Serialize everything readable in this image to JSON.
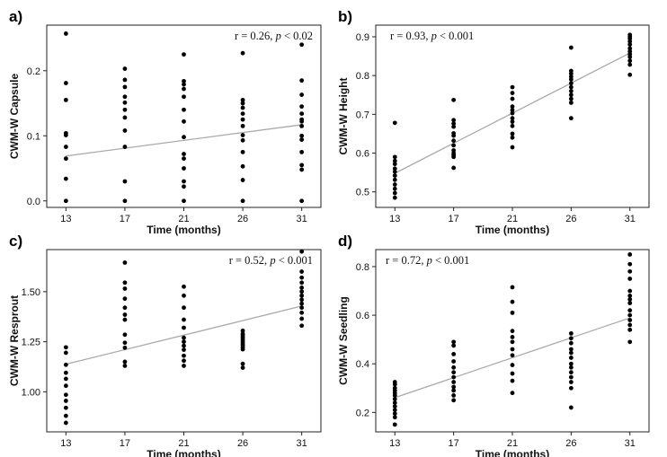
{
  "chart_data": [
    {
      "panel": "a)",
      "type": "scatter",
      "xlabel": "Time (months)",
      "ylabel": "CWM-W Capsule",
      "x_categories": [
        13,
        17,
        21,
        26,
        31
      ],
      "ylim": [
        -0.01,
        0.27
      ],
      "yticks": [
        0.0,
        0.1,
        0.2
      ],
      "ytick_labels": [
        "0.0",
        "0.1",
        "0.2"
      ],
      "annotation": {
        "r_text": "r = 0.26, ",
        "p_var": "p",
        "p_text": " < 0.02"
      },
      "trend": {
        "start": 0.069,
        "end": 0.117
      },
      "points": [
        {
          "x": 13,
          "y": 0.257
        },
        {
          "x": 13,
          "y": 0.181
        },
        {
          "x": 13,
          "y": 0.155
        },
        {
          "x": 13,
          "y": 0.104
        },
        {
          "x": 13,
          "y": 0.101
        },
        {
          "x": 13,
          "y": 0.083
        },
        {
          "x": 13,
          "y": 0.065
        },
        {
          "x": 13,
          "y": 0.034
        },
        {
          "x": 13,
          "y": 0.0
        },
        {
          "x": 17,
          "y": 0.203
        },
        {
          "x": 17,
          "y": 0.186
        },
        {
          "x": 17,
          "y": 0.175
        },
        {
          "x": 17,
          "y": 0.16
        },
        {
          "x": 17,
          "y": 0.151
        },
        {
          "x": 17,
          "y": 0.14
        },
        {
          "x": 17,
          "y": 0.128
        },
        {
          "x": 17,
          "y": 0.108
        },
        {
          "x": 17,
          "y": 0.083
        },
        {
          "x": 17,
          "y": 0.03
        },
        {
          "x": 17,
          "y": 0.0
        },
        {
          "x": 21,
          "y": 0.225
        },
        {
          "x": 21,
          "y": 0.184
        },
        {
          "x": 21,
          "y": 0.179
        },
        {
          "x": 21,
          "y": 0.172
        },
        {
          "x": 21,
          "y": 0.16
        },
        {
          "x": 21,
          "y": 0.14
        },
        {
          "x": 21,
          "y": 0.122
        },
        {
          "x": 21,
          "y": 0.098
        },
        {
          "x": 21,
          "y": 0.072
        },
        {
          "x": 21,
          "y": 0.065
        },
        {
          "x": 21,
          "y": 0.05
        },
        {
          "x": 21,
          "y": 0.03
        },
        {
          "x": 21,
          "y": 0.022
        },
        {
          "x": 21,
          "y": 0.0
        },
        {
          "x": 26,
          "y": 0.227
        },
        {
          "x": 26,
          "y": 0.155
        },
        {
          "x": 26,
          "y": 0.15
        },
        {
          "x": 26,
          "y": 0.143
        },
        {
          "x": 26,
          "y": 0.134
        },
        {
          "x": 26,
          "y": 0.125
        },
        {
          "x": 26,
          "y": 0.115
        },
        {
          "x": 26,
          "y": 0.101
        },
        {
          "x": 26,
          "y": 0.093
        },
        {
          "x": 26,
          "y": 0.075
        },
        {
          "x": 26,
          "y": 0.053
        },
        {
          "x": 26,
          "y": 0.032
        },
        {
          "x": 26,
          "y": 0.0
        },
        {
          "x": 31,
          "y": 0.24
        },
        {
          "x": 31,
          "y": 0.185
        },
        {
          "x": 31,
          "y": 0.163
        },
        {
          "x": 31,
          "y": 0.145
        },
        {
          "x": 31,
          "y": 0.134
        },
        {
          "x": 31,
          "y": 0.125
        },
        {
          "x": 31,
          "y": 0.122
        },
        {
          "x": 31,
          "y": 0.115
        },
        {
          "x": 31,
          "y": 0.1
        },
        {
          "x": 31,
          "y": 0.094
        },
        {
          "x": 31,
          "y": 0.075
        },
        {
          "x": 31,
          "y": 0.055
        },
        {
          "x": 31,
          "y": 0.048
        },
        {
          "x": 31,
          "y": 0.0
        }
      ]
    },
    {
      "panel": "b)",
      "type": "scatter",
      "xlabel": "Time (months)",
      "ylabel": "CWM-W Height",
      "x_categories": [
        13,
        17,
        21,
        26,
        31
      ],
      "ylim": [
        0.46,
        0.93
      ],
      "yticks": [
        0.5,
        0.6,
        0.7,
        0.8,
        0.9
      ],
      "ytick_labels": [
        "0.5",
        "0.6",
        "0.7",
        "0.8",
        "0.9"
      ],
      "annotation": {
        "r_text": "r = 0.93, ",
        "p_var": "p",
        "p_text": " < 0.001"
      },
      "trend": {
        "start": 0.548,
        "end": 0.858
      },
      "points": [
        {
          "x": 13,
          "y": 0.678
        },
        {
          "x": 13,
          "y": 0.59
        },
        {
          "x": 13,
          "y": 0.58
        },
        {
          "x": 13,
          "y": 0.572
        },
        {
          "x": 13,
          "y": 0.56
        },
        {
          "x": 13,
          "y": 0.552
        },
        {
          "x": 13,
          "y": 0.542
        },
        {
          "x": 13,
          "y": 0.531
        },
        {
          "x": 13,
          "y": 0.519
        },
        {
          "x": 13,
          "y": 0.508
        },
        {
          "x": 13,
          "y": 0.497
        },
        {
          "x": 13,
          "y": 0.485
        },
        {
          "x": 17,
          "y": 0.737
        },
        {
          "x": 17,
          "y": 0.685
        },
        {
          "x": 17,
          "y": 0.676
        },
        {
          "x": 17,
          "y": 0.668
        },
        {
          "x": 17,
          "y": 0.651
        },
        {
          "x": 17,
          "y": 0.645
        },
        {
          "x": 17,
          "y": 0.632
        },
        {
          "x": 17,
          "y": 0.62
        },
        {
          "x": 17,
          "y": 0.607
        },
        {
          "x": 17,
          "y": 0.6
        },
        {
          "x": 17,
          "y": 0.595
        },
        {
          "x": 17,
          "y": 0.59
        },
        {
          "x": 17,
          "y": 0.562
        },
        {
          "x": 21,
          "y": 0.77
        },
        {
          "x": 21,
          "y": 0.755
        },
        {
          "x": 21,
          "y": 0.74
        },
        {
          "x": 21,
          "y": 0.72
        },
        {
          "x": 21,
          "y": 0.711
        },
        {
          "x": 21,
          "y": 0.703
        },
        {
          "x": 21,
          "y": 0.69
        },
        {
          "x": 21,
          "y": 0.681
        },
        {
          "x": 21,
          "y": 0.67
        },
        {
          "x": 21,
          "y": 0.65
        },
        {
          "x": 21,
          "y": 0.64
        },
        {
          "x": 21,
          "y": 0.615
        },
        {
          "x": 26,
          "y": 0.872
        },
        {
          "x": 26,
          "y": 0.812
        },
        {
          "x": 26,
          "y": 0.805
        },
        {
          "x": 26,
          "y": 0.797
        },
        {
          "x": 26,
          "y": 0.79
        },
        {
          "x": 26,
          "y": 0.78
        },
        {
          "x": 26,
          "y": 0.77
        },
        {
          "x": 26,
          "y": 0.76
        },
        {
          "x": 26,
          "y": 0.75
        },
        {
          "x": 26,
          "y": 0.74
        },
        {
          "x": 26,
          "y": 0.73
        },
        {
          "x": 26,
          "y": 0.69
        },
        {
          "x": 31,
          "y": 0.905
        },
        {
          "x": 31,
          "y": 0.9
        },
        {
          "x": 31,
          "y": 0.895
        },
        {
          "x": 31,
          "y": 0.888
        },
        {
          "x": 31,
          "y": 0.88
        },
        {
          "x": 31,
          "y": 0.87
        },
        {
          "x": 31,
          "y": 0.862
        },
        {
          "x": 31,
          "y": 0.855
        },
        {
          "x": 31,
          "y": 0.848
        },
        {
          "x": 31,
          "y": 0.838
        },
        {
          "x": 31,
          "y": 0.828
        },
        {
          "x": 31,
          "y": 0.802
        }
      ]
    },
    {
      "panel": "c)",
      "type": "scatter",
      "xlabel": "Time (months)",
      "ylabel": "CWM-W Resprout",
      "x_categories": [
        13,
        17,
        21,
        26,
        31
      ],
      "ylim": [
        0.8,
        1.71
      ],
      "yticks": [
        1.0,
        1.25,
        1.5
      ],
      "ytick_labels": [
        "1.00",
        "1.25",
        "1.50"
      ],
      "annotation": {
        "r_text": "r = 0.52, ",
        "p_var": "p",
        "p_text": " < 0.001"
      },
      "trend": {
        "start": 1.138,
        "end": 1.428
      },
      "points": [
        {
          "x": 13,
          "y": 1.222
        },
        {
          "x": 13,
          "y": 1.195
        },
        {
          "x": 13,
          "y": 1.135
        },
        {
          "x": 13,
          "y": 1.095
        },
        {
          "x": 13,
          "y": 1.065
        },
        {
          "x": 13,
          "y": 1.03
        },
        {
          "x": 13,
          "y": 0.985
        },
        {
          "x": 13,
          "y": 0.955
        },
        {
          "x": 13,
          "y": 0.92
        },
        {
          "x": 13,
          "y": 0.88
        },
        {
          "x": 13,
          "y": 0.845
        },
        {
          "x": 17,
          "y": 1.645
        },
        {
          "x": 17,
          "y": 1.545
        },
        {
          "x": 17,
          "y": 1.515
        },
        {
          "x": 17,
          "y": 1.465
        },
        {
          "x": 17,
          "y": 1.42
        },
        {
          "x": 17,
          "y": 1.385
        },
        {
          "x": 17,
          "y": 1.36
        },
        {
          "x": 17,
          "y": 1.285
        },
        {
          "x": 17,
          "y": 1.245
        },
        {
          "x": 17,
          "y": 1.22
        },
        {
          "x": 17,
          "y": 1.15
        },
        {
          "x": 17,
          "y": 1.13
        },
        {
          "x": 21,
          "y": 1.525
        },
        {
          "x": 21,
          "y": 1.48
        },
        {
          "x": 21,
          "y": 1.42
        },
        {
          "x": 21,
          "y": 1.36
        },
        {
          "x": 21,
          "y": 1.32
        },
        {
          "x": 21,
          "y": 1.27
        },
        {
          "x": 21,
          "y": 1.25
        },
        {
          "x": 21,
          "y": 1.23
        },
        {
          "x": 21,
          "y": 1.21
        },
        {
          "x": 21,
          "y": 1.18
        },
        {
          "x": 21,
          "y": 1.155
        },
        {
          "x": 21,
          "y": 1.13
        },
        {
          "x": 26,
          "y": 1.305
        },
        {
          "x": 26,
          "y": 1.29
        },
        {
          "x": 26,
          "y": 1.282
        },
        {
          "x": 26,
          "y": 1.272
        },
        {
          "x": 26,
          "y": 1.262
        },
        {
          "x": 26,
          "y": 1.252
        },
        {
          "x": 26,
          "y": 1.242
        },
        {
          "x": 26,
          "y": 1.232
        },
        {
          "x": 26,
          "y": 1.222
        },
        {
          "x": 26,
          "y": 1.212
        },
        {
          "x": 26,
          "y": 1.14
        },
        {
          "x": 26,
          "y": 1.12
        },
        {
          "x": 31,
          "y": 1.7
        },
        {
          "x": 31,
          "y": 1.6
        },
        {
          "x": 31,
          "y": 1.57
        },
        {
          "x": 31,
          "y": 1.545
        },
        {
          "x": 31,
          "y": 1.52
        },
        {
          "x": 31,
          "y": 1.5
        },
        {
          "x": 31,
          "y": 1.48
        },
        {
          "x": 31,
          "y": 1.46
        },
        {
          "x": 31,
          "y": 1.44
        },
        {
          "x": 31,
          "y": 1.42
        },
        {
          "x": 31,
          "y": 1.395
        },
        {
          "x": 31,
          "y": 1.365
        },
        {
          "x": 31,
          "y": 1.33
        }
      ]
    },
    {
      "panel": "d)",
      "type": "scatter",
      "xlabel": "Time (months)",
      "ylabel": "CWM-W Seedling",
      "x_categories": [
        13,
        17,
        21,
        26,
        31
      ],
      "ylim": [
        0.12,
        0.87
      ],
      "yticks": [
        0.2,
        0.4,
        0.6,
        0.8
      ],
      "ytick_labels": [
        "0.2",
        "0.4",
        "0.6",
        "0.8"
      ],
      "annotation": {
        "r_text": "r = 0.72, ",
        "p_var": "p",
        "p_text": " < 0.001"
      },
      "trend": {
        "start": 0.261,
        "end": 0.589
      },
      "points": [
        {
          "x": 13,
          "y": 0.325
        },
        {
          "x": 13,
          "y": 0.315
        },
        {
          "x": 13,
          "y": 0.3
        },
        {
          "x": 13,
          "y": 0.29
        },
        {
          "x": 13,
          "y": 0.28
        },
        {
          "x": 13,
          "y": 0.27
        },
        {
          "x": 13,
          "y": 0.255
        },
        {
          "x": 13,
          "y": 0.24
        },
        {
          "x": 13,
          "y": 0.225
        },
        {
          "x": 13,
          "y": 0.21
        },
        {
          "x": 13,
          "y": 0.195
        },
        {
          "x": 13,
          "y": 0.18
        },
        {
          "x": 13,
          "y": 0.15
        },
        {
          "x": 17,
          "y": 0.49
        },
        {
          "x": 17,
          "y": 0.475
        },
        {
          "x": 17,
          "y": 0.44
        },
        {
          "x": 17,
          "y": 0.41
        },
        {
          "x": 17,
          "y": 0.385
        },
        {
          "x": 17,
          "y": 0.365
        },
        {
          "x": 17,
          "y": 0.345
        },
        {
          "x": 17,
          "y": 0.325
        },
        {
          "x": 17,
          "y": 0.305
        },
        {
          "x": 17,
          "y": 0.29
        },
        {
          "x": 17,
          "y": 0.27
        },
        {
          "x": 17,
          "y": 0.25
        },
        {
          "x": 21,
          "y": 0.715
        },
        {
          "x": 21,
          "y": 0.655
        },
        {
          "x": 21,
          "y": 0.61
        },
        {
          "x": 21,
          "y": 0.535
        },
        {
          "x": 21,
          "y": 0.51
        },
        {
          "x": 21,
          "y": 0.49
        },
        {
          "x": 21,
          "y": 0.46
        },
        {
          "x": 21,
          "y": 0.435
        },
        {
          "x": 21,
          "y": 0.395
        },
        {
          "x": 21,
          "y": 0.36
        },
        {
          "x": 21,
          "y": 0.33
        },
        {
          "x": 21,
          "y": 0.28
        },
        {
          "x": 26,
          "y": 0.525
        },
        {
          "x": 26,
          "y": 0.505
        },
        {
          "x": 26,
          "y": 0.485
        },
        {
          "x": 26,
          "y": 0.46
        },
        {
          "x": 26,
          "y": 0.445
        },
        {
          "x": 26,
          "y": 0.425
        },
        {
          "x": 26,
          "y": 0.4
        },
        {
          "x": 26,
          "y": 0.385
        },
        {
          "x": 26,
          "y": 0.365
        },
        {
          "x": 26,
          "y": 0.345
        },
        {
          "x": 26,
          "y": 0.325
        },
        {
          "x": 26,
          "y": 0.3
        },
        {
          "x": 26,
          "y": 0.22
        },
        {
          "x": 31,
          "y": 0.85
        },
        {
          "x": 31,
          "y": 0.81
        },
        {
          "x": 31,
          "y": 0.78
        },
        {
          "x": 31,
          "y": 0.75
        },
        {
          "x": 31,
          "y": 0.7
        },
        {
          "x": 31,
          "y": 0.68
        },
        {
          "x": 31,
          "y": 0.665
        },
        {
          "x": 31,
          "y": 0.65
        },
        {
          "x": 31,
          "y": 0.62
        },
        {
          "x": 31,
          "y": 0.6
        },
        {
          "x": 31,
          "y": 0.58
        },
        {
          "x": 31,
          "y": 0.56
        },
        {
          "x": 31,
          "y": 0.54
        },
        {
          "x": 31,
          "y": 0.49
        }
      ]
    }
  ]
}
